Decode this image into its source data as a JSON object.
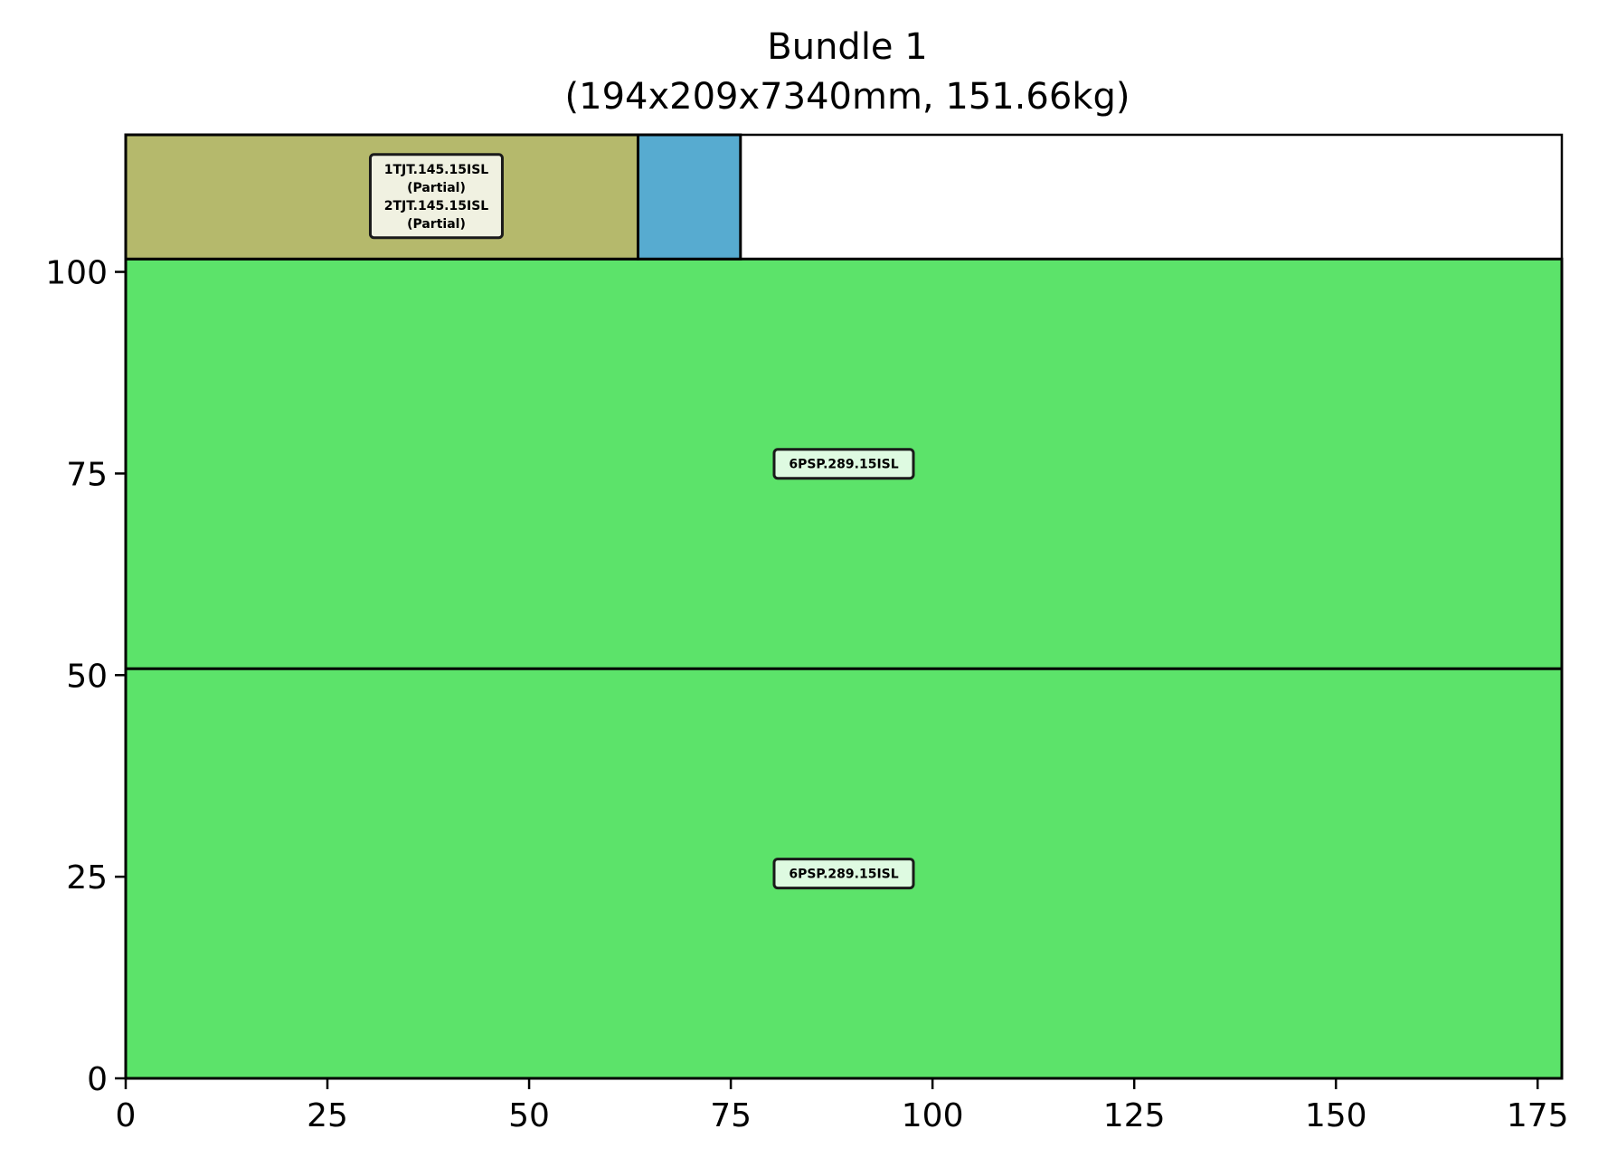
{
  "chart_data": {
    "type": "rectangle-packing",
    "title": "Bundle 1",
    "subtitle": "(194x209x7340mm, 151.66kg)",
    "xlabel": "",
    "ylabel": "",
    "xlim": [
      0,
      178
    ],
    "ylim": [
      0,
      117
    ],
    "xticks": [
      0,
      25,
      50,
      75,
      100,
      125,
      150,
      175
    ],
    "yticks": [
      0,
      25,
      50,
      75,
      100
    ],
    "grid": false,
    "rects": [
      {
        "x": 0,
        "y": 0,
        "w": 178,
        "h": 50.8,
        "color": "#5ce36a",
        "label_lines": [
          "6PSP.289.15ISL"
        ],
        "label_at": [
          89,
          25.4
        ]
      },
      {
        "x": 0,
        "y": 50.8,
        "w": 178,
        "h": 50.8,
        "color": "#5ce36a",
        "label_lines": [
          "6PSP.289.15ISL"
        ],
        "label_at": [
          89,
          76.2
        ]
      },
      {
        "x": 0,
        "y": 101.6,
        "w": 63.5,
        "h": 15.4,
        "color": "#b5b96c",
        "label_lines": [
          "1TJT.145.15ISL",
          "(Partial)",
          "2TJT.145.15ISL",
          "(Partial)"
        ],
        "label_at": [
          38.5,
          109.4
        ]
      },
      {
        "x": 63.5,
        "y": 101.6,
        "w": 12.7,
        "h": 15.4,
        "color": "#57abd0",
        "label_lines": [],
        "label_at": null
      }
    ]
  }
}
